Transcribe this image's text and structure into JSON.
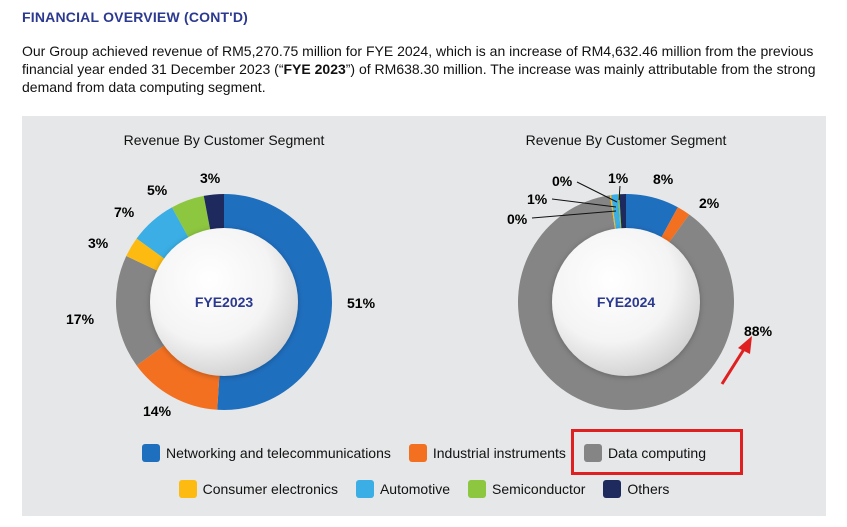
{
  "heading": "FINANCIAL OVERVIEW (CONT'D)",
  "intro": {
    "part1": "Our Group achieved revenue of RM5,270.75 million for FYE 2024, which is an increase of RM4,632.46 million from the previous financial year ended 31 December 2023 (“",
    "bold": "FYE 2023",
    "part2": "”) of RM638.30 million. The increase was mainly attributable from the strong demand from data computing segment."
  },
  "colors": {
    "networking": "#1f6fbf",
    "industrial": "#f37021",
    "data_computing": "#858585",
    "consumer": "#fdbb12",
    "automotive": "#3aaee5",
    "semiconductor": "#8dc63f",
    "others": "#1e2a5e",
    "arrow": "#e02020"
  },
  "legend": [
    [
      {
        "label": "Networking and telecommunications",
        "color_key": "networking"
      },
      {
        "label": "Industrial instruments",
        "color_key": "industrial"
      },
      {
        "label": "Data computing",
        "color_key": "data_computing"
      }
    ],
    [
      {
        "label": "Consumer electronics",
        "color_key": "consumer"
      },
      {
        "label": "Automotive",
        "color_key": "automotive"
      },
      {
        "label": "Semiconductor",
        "color_key": "semiconductor"
      },
      {
        "label": "Others",
        "color_key": "others"
      }
    ]
  ],
  "chart_data": [
    {
      "type": "pie",
      "title": "Revenue By Customer Segment",
      "center_label": "FYE2023",
      "slices": [
        {
          "name": "Networking and telecommunications",
          "value": 51,
          "label": "51%",
          "color_key": "networking"
        },
        {
          "name": "Industrial instruments",
          "value": 14,
          "label": "14%",
          "color_key": "industrial"
        },
        {
          "name": "Data computing",
          "value": 17,
          "label": "17%",
          "color_key": "data_computing"
        },
        {
          "name": "Consumer electronics",
          "value": 3,
          "label": "3%",
          "color_key": "consumer"
        },
        {
          "name": "Automotive",
          "value": 7,
          "label": "7%",
          "color_key": "automotive"
        },
        {
          "name": "Semiconductor",
          "value": 5,
          "label": "5%",
          "color_key": "semiconductor"
        },
        {
          "name": "Others",
          "value": 3,
          "label": "3%",
          "color_key": "others"
        }
      ]
    },
    {
      "type": "pie",
      "title": "Revenue By Customer Segment",
      "center_label": "FYE2024",
      "slices": [
        {
          "name": "Networking and telecommunications",
          "value": 8,
          "label": "8%",
          "color_key": "networking"
        },
        {
          "name": "Industrial instruments",
          "value": 2,
          "label": "2%",
          "color_key": "industrial"
        },
        {
          "name": "Data computing",
          "value": 88,
          "label": "88%",
          "color_key": "data_computing"
        },
        {
          "name": "Consumer electronics",
          "value": 0.2,
          "label": "0%",
          "color_key": "consumer"
        },
        {
          "name": "Automotive",
          "value": 1,
          "label": "1%",
          "color_key": "automotive"
        },
        {
          "name": "Semiconductor",
          "value": 0.2,
          "label": "0%",
          "color_key": "semiconductor"
        },
        {
          "name": "Others",
          "value": 1,
          "label": "1%",
          "color_key": "others"
        }
      ]
    }
  ]
}
